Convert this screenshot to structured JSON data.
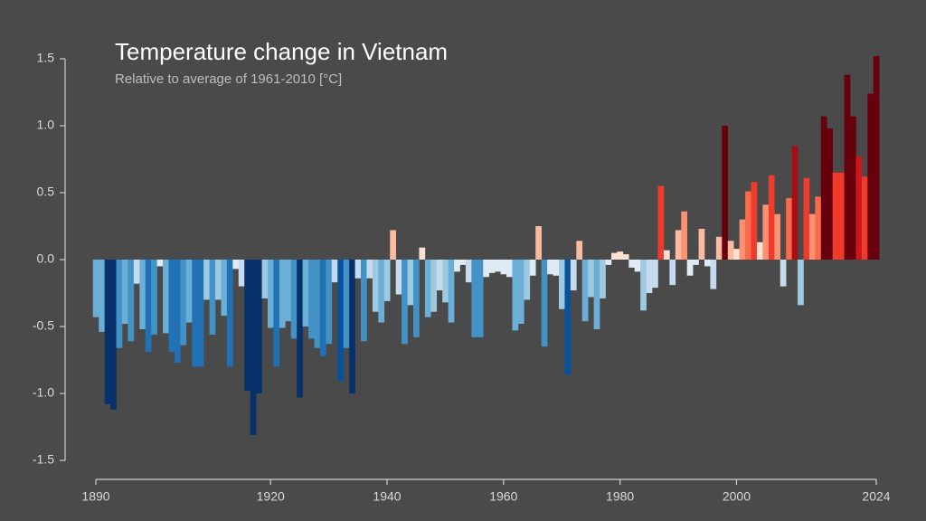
{
  "chart_data": {
    "type": "bar",
    "title": "Temperature change in Vietnam",
    "subtitle": "Relative to average of 1961-2010  [°C]",
    "x": [
      1890,
      1891,
      1892,
      1893,
      1894,
      1895,
      1896,
      1897,
      1898,
      1899,
      1900,
      1901,
      1902,
      1903,
      1904,
      1905,
      1906,
      1907,
      1908,
      1909,
      1910,
      1911,
      1912,
      1913,
      1914,
      1915,
      1916,
      1917,
      1918,
      1919,
      1920,
      1921,
      1922,
      1923,
      1924,
      1925,
      1926,
      1927,
      1928,
      1929,
      1930,
      1931,
      1932,
      1933,
      1934,
      1935,
      1936,
      1937,
      1938,
      1939,
      1940,
      1941,
      1942,
      1943,
      1944,
      1945,
      1946,
      1947,
      1948,
      1949,
      1950,
      1951,
      1952,
      1953,
      1954,
      1955,
      1956,
      1957,
      1958,
      1959,
      1960,
      1961,
      1962,
      1963,
      1964,
      1965,
      1966,
      1967,
      1968,
      1969,
      1970,
      1971,
      1972,
      1973,
      1974,
      1975,
      1976,
      1977,
      1978,
      1979,
      1980,
      1981,
      1982,
      1983,
      1984,
      1985,
      1986,
      1987,
      1988,
      1989,
      1990,
      1991,
      1992,
      1993,
      1994,
      1995,
      1996,
      1997,
      1998,
      1999,
      2000,
      2001,
      2002,
      2003,
      2004,
      2005,
      2006,
      2007,
      2008,
      2009,
      2010,
      2011,
      2012,
      2013,
      2014,
      2015,
      2016,
      2017,
      2018,
      2019,
      2020,
      2021,
      2022,
      2023,
      2024
    ],
    "values": [
      -0.43,
      -0.54,
      -1.08,
      -1.12,
      -0.66,
      -0.48,
      -0.61,
      -0.18,
      -0.52,
      -0.69,
      -0.56,
      -0.05,
      -0.55,
      -0.69,
      -0.77,
      -0.64,
      -0.47,
      -0.8,
      -0.8,
      -0.3,
      -0.56,
      -0.3,
      -0.42,
      -0.8,
      -0.07,
      -0.2,
      -0.98,
      -1.31,
      -1.0,
      -0.29,
      -0.51,
      -0.8,
      -0.51,
      -0.46,
      -0.59,
      -1.03,
      -0.5,
      -0.59,
      -0.66,
      -0.72,
      -0.63,
      -0.17,
      -0.91,
      -0.66,
      -1.0,
      -0.14,
      -0.61,
      -0.14,
      -0.39,
      -0.47,
      -0.31,
      0.22,
      -0.26,
      -0.63,
      -0.34,
      -0.58,
      0.09,
      -0.43,
      -0.39,
      -0.23,
      -0.32,
      -0.47,
      -0.09,
      -0.04,
      -0.17,
      -0.58,
      -0.58,
      -0.13,
      -0.1,
      -0.09,
      -0.11,
      -0.13,
      -0.53,
      -0.48,
      -0.3,
      -0.12,
      0.25,
      -0.65,
      -0.11,
      -0.12,
      -0.37,
      -0.86,
      -0.23,
      0.14,
      -0.46,
      -0.28,
      -0.52,
      -0.29,
      -0.04,
      0.05,
      0.06,
      0.04,
      -0.06,
      -0.09,
      -0.38,
      -0.25,
      -0.21,
      0.55,
      0.07,
      -0.19,
      0.22,
      0.36,
      -0.12,
      -0.04,
      0.23,
      -0.05,
      -0.22,
      0.17,
      1.0,
      0.14,
      0.08,
      0.3,
      0.51,
      0.58,
      0.13,
      0.41,
      0.63,
      0.34,
      -0.2,
      0.46,
      0.85,
      -0.34,
      0.61,
      0.34,
      0.47,
      1.07,
      0.98,
      0.65,
      0.65,
      1.38,
      1.07,
      0.77,
      0.62,
      1.24,
      1.52
    ],
    "colormap": [
      "#08306b",
      "#08519c",
      "#2171b5",
      "#4292c6",
      "#6baed6",
      "#9ecae1",
      "#c6dbef",
      "#deebf7",
      "#fee0d2",
      "#fcbba1",
      "#fc9272",
      "#fb6a4a",
      "#ef3b2c",
      "#cb181d",
      "#a50f15",
      "#67000d"
    ],
    "color_range": [
      -1.1,
      1.1
    ],
    "xlim": [
      1890,
      2024
    ],
    "xticks": [
      1890,
      1920,
      1940,
      1960,
      1980,
      2000,
      2024
    ],
    "ylim": [
      -1.5,
      1.5
    ],
    "yticks": [
      {
        "value": 1.5,
        "label": "1.5"
      },
      {
        "value": 1,
        "label": "1.0"
      },
      {
        "value": 0.5,
        "label": "0.5"
      },
      {
        "value": 0,
        "label": "0.0"
      },
      {
        "value": -0.5,
        "label": "-0.5"
      },
      {
        "value": -1,
        "label": "-1.0"
      },
      {
        "value": -1.5,
        "label": "-1.5"
      }
    ]
  }
}
